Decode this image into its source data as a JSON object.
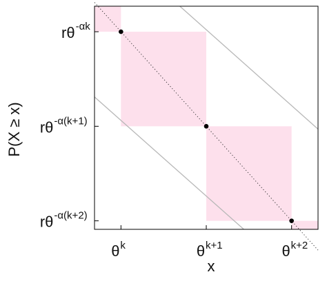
{
  "chart_data": {
    "type": "line",
    "xlabel": "x",
    "ylabel": "P(X ≥ x)",
    "x_axis_scale": "log",
    "y_axis_scale": "log",
    "grid": false,
    "legend": "none",
    "x_ticks": [
      {
        "value": 1,
        "base": "θ",
        "exp": "k"
      },
      {
        "value": 2,
        "base": "θ",
        "exp": "k+1"
      },
      {
        "value": 3,
        "base": "θ",
        "exp": "k+2"
      }
    ],
    "y_ticks": [
      {
        "value": 3,
        "base": "rθ",
        "exp": "-αk"
      },
      {
        "value": 2,
        "base": "rθ",
        "exp": "-α(k+1)"
      },
      {
        "value": 1,
        "base": "rθ",
        "exp": "-α(k+2)"
      }
    ],
    "xlim": [
      0.69,
      3.31
    ],
    "ylim": [
      0.91,
      3.27
    ],
    "shaded_regions": [
      {
        "x": [
          0.69,
          1
        ],
        "y": [
          3,
          3.27
        ]
      },
      {
        "x": [
          1,
          2
        ],
        "y": [
          2,
          3
        ]
      },
      {
        "x": [
          2,
          3
        ],
        "y": [
          1,
          2
        ]
      },
      {
        "x": [
          3,
          3.31
        ],
        "y": [
          0.91,
          1
        ]
      }
    ],
    "points": [
      {
        "x": 1,
        "y": 3
      },
      {
        "x": 2,
        "y": 2
      },
      {
        "x": 3,
        "y": 1
      }
    ],
    "dotted_line": {
      "x": [
        0.69,
        3.31
      ],
      "y": [
        3.31,
        0.69
      ]
    },
    "bound_lines": [
      {
        "x": [
          0.69,
          2.44
        ],
        "y": [
          2.31,
          0.91
        ]
      },
      {
        "x": [
          1.69,
          3.31
        ],
        "y": [
          3.27,
          1.97
        ]
      }
    ],
    "colors": {
      "shade": "#fde0ec",
      "points": "#000000",
      "dotted": "#333333",
      "bounds": "#b8b8b8",
      "frame": "#000000"
    }
  }
}
